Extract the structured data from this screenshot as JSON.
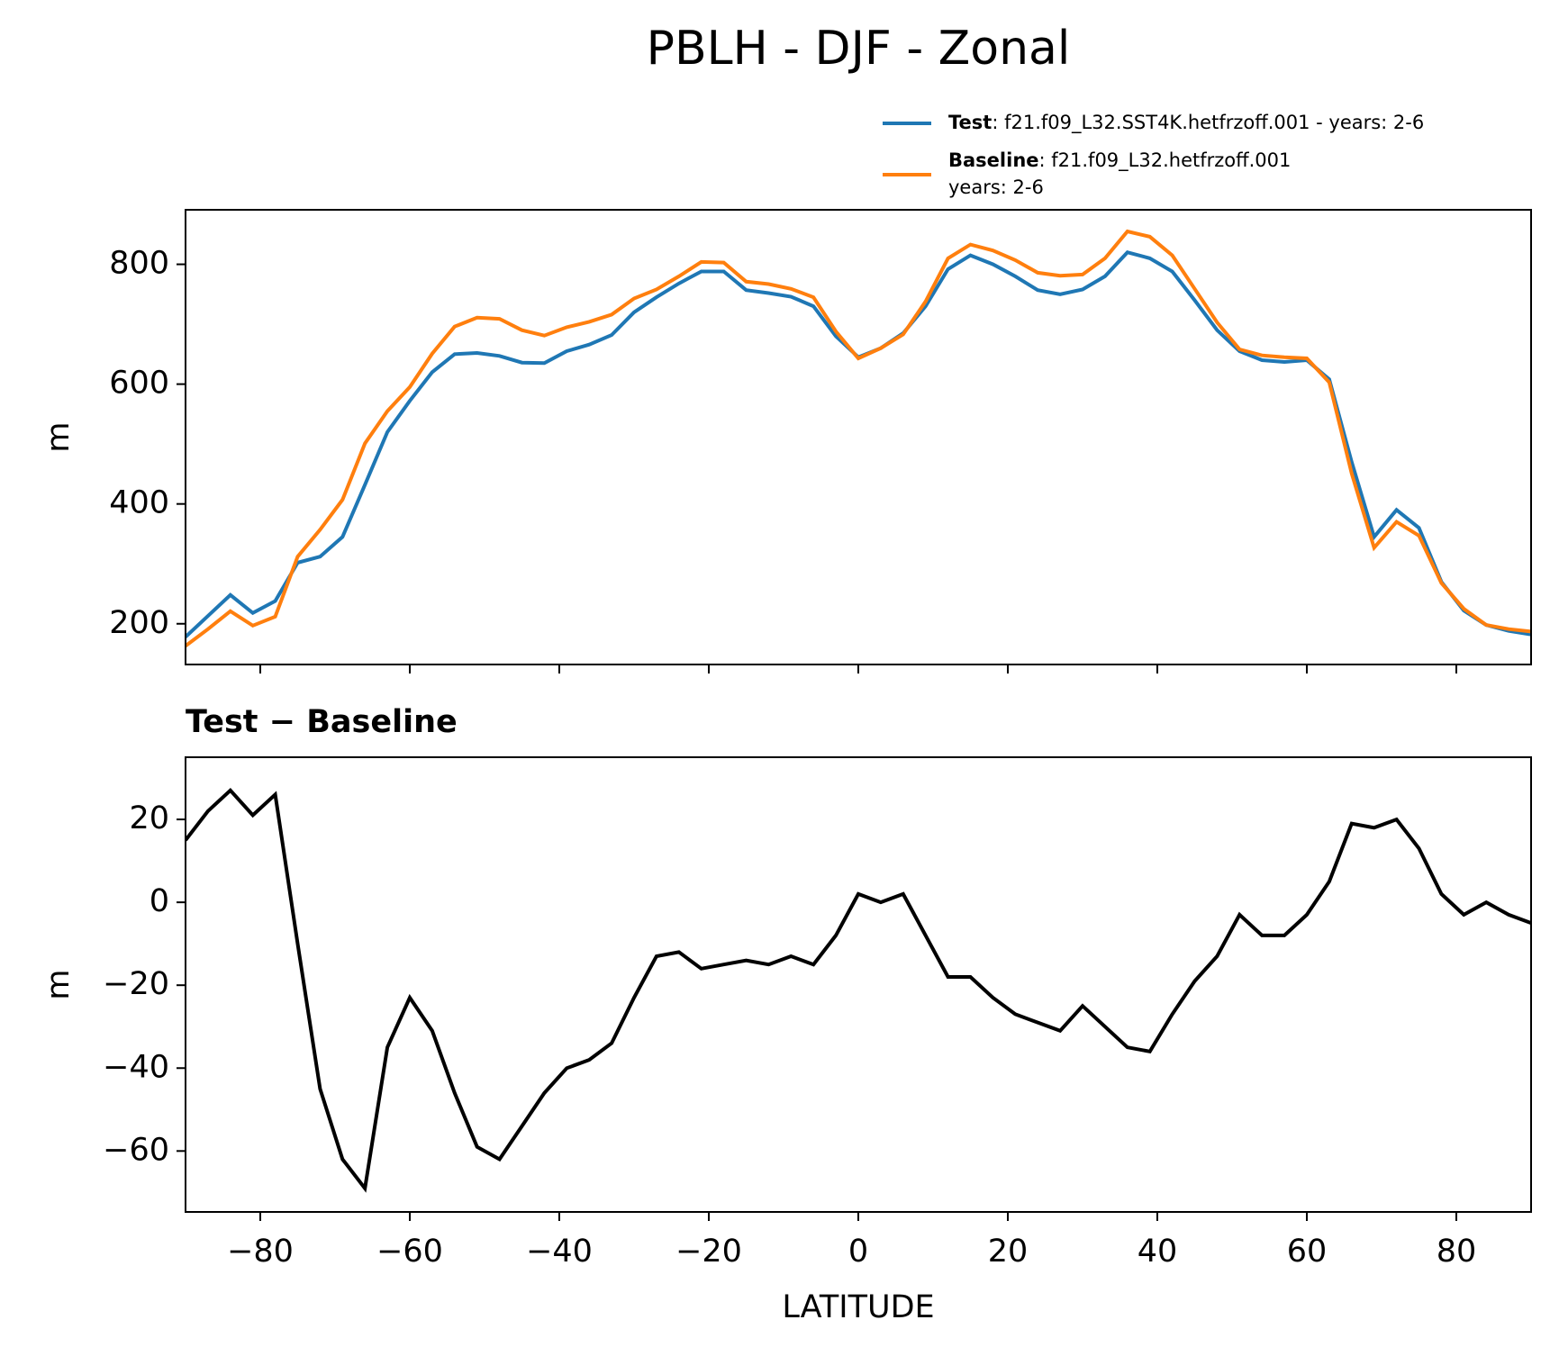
{
  "title": "PBLH - DJF - Zonal",
  "chart_data": [
    {
      "type": "line",
      "ylabel": "m",
      "show_xtick_labels": false,
      "x": [
        -90,
        -87,
        -84,
        -81,
        -78,
        -75,
        -72,
        -69,
        -66,
        -63,
        -60,
        -57,
        -54,
        -51,
        -48,
        -45,
        -42,
        -39,
        -36,
        -33,
        -30,
        -27,
        -24,
        -21,
        -18,
        -15,
        -12,
        -9,
        -6,
        -3,
        0,
        3,
        6,
        9,
        12,
        15,
        18,
        21,
        24,
        27,
        30,
        33,
        36,
        39,
        42,
        45,
        48,
        51,
        54,
        57,
        60,
        63,
        66,
        69,
        72,
        75,
        78,
        81,
        84,
        87,
        90
      ],
      "series": [
        {
          "name": "Test",
          "description_lines": [
            ": f21.f09_L32.SST4K.hetfrzoff.001 - years: 2-6"
          ],
          "color": "#1f77b4",
          "values": [
            178,
            213,
            248,
            218,
            238,
            302,
            312,
            345,
            432,
            520,
            572,
            620,
            650,
            652,
            647,
            636,
            635,
            655,
            666,
            682,
            720,
            745,
            768,
            788,
            788,
            757,
            752,
            746,
            730,
            680,
            645,
            660,
            685,
            730,
            792,
            815,
            800,
            780,
            757,
            750,
            758,
            780,
            820,
            810,
            788,
            740,
            690,
            655,
            640,
            637,
            640,
            608,
            470,
            345,
            390,
            360,
            270,
            222,
            198,
            188,
            182
          ]
        },
        {
          "name": "Baseline",
          "description_lines": [
            ": f21.f09_L32.hetfrzoff.001",
            "years: 2-6"
          ],
          "color": "#ff7f0e",
          "values": [
            163,
            191,
            221,
            197,
            212,
            312,
            357,
            407,
            501,
            555,
            595,
            651,
            696,
            711,
            709,
            690,
            681,
            695,
            704,
            716,
            743,
            758,
            780,
            804,
            803,
            771,
            767,
            759,
            745,
            688,
            643,
            660,
            683,
            738,
            810,
            833,
            823,
            807,
            786,
            781,
            783,
            810,
            855,
            846,
            815,
            759,
            703,
            658,
            648,
            645,
            643,
            603,
            451,
            327,
            370,
            347,
            268,
            225,
            198,
            191,
            187
          ]
        }
      ],
      "xlim": [
        -90,
        90
      ],
      "xticks": [
        -80,
        -60,
        -40,
        -20,
        0,
        20,
        40,
        60,
        80
      ],
      "ylim": [
        132,
        891
      ],
      "yticks": [
        200,
        400,
        600,
        800
      ]
    },
    {
      "type": "line",
      "title": "Test − Baseline",
      "ylabel": "m",
      "xlabel": "LATITUDE",
      "show_xtick_labels": true,
      "x": [
        -90,
        -87,
        -84,
        -81,
        -78,
        -75,
        -72,
        -69,
        -66,
        -63,
        -60,
        -57,
        -54,
        -51,
        -48,
        -45,
        -42,
        -39,
        -36,
        -33,
        -30,
        -27,
        -24,
        -21,
        -18,
        -15,
        -12,
        -9,
        -6,
        -3,
        0,
        3,
        6,
        9,
        12,
        15,
        18,
        21,
        24,
        27,
        30,
        33,
        36,
        39,
        42,
        45,
        48,
        51,
        54,
        57,
        60,
        63,
        66,
        69,
        72,
        75,
        78,
        81,
        84,
        87,
        90
      ],
      "series": [
        {
          "color": "#000000",
          "values": [
            15,
            22,
            27,
            21,
            26,
            -10,
            -45,
            -62,
            -69,
            -35,
            -23,
            -31,
            -46,
            -59,
            -62,
            -54,
            -46,
            -40,
            -38,
            -34,
            -23,
            -13,
            -12,
            -16,
            -15,
            -14,
            -15,
            -13,
            -15,
            -8,
            2,
            0,
            2,
            -8,
            -18,
            -18,
            -23,
            -27,
            -29,
            -31,
            -25,
            -30,
            -35,
            -36,
            -27,
            -19,
            -13,
            -3,
            -8,
            -8,
            -3,
            5,
            19,
            18,
            20,
            13,
            2,
            -3,
            0,
            -3,
            -5
          ]
        }
      ],
      "xlim": [
        -90,
        90
      ],
      "xticks": [
        {
          "value": -80,
          "label": "−80"
        },
        {
          "value": -60,
          "label": "−60"
        },
        {
          "value": -40,
          "label": "−40"
        },
        {
          "value": -20,
          "label": "−20"
        },
        0,
        20,
        40,
        60,
        80
      ],
      "ylim": [
        -74.7,
        35
      ],
      "yticks": [
        20,
        0,
        {
          "value": -20,
          "label": "−20"
        },
        {
          "value": -40,
          "label": "−40"
        },
        {
          "value": -60,
          "label": "−60"
        }
      ]
    }
  ]
}
